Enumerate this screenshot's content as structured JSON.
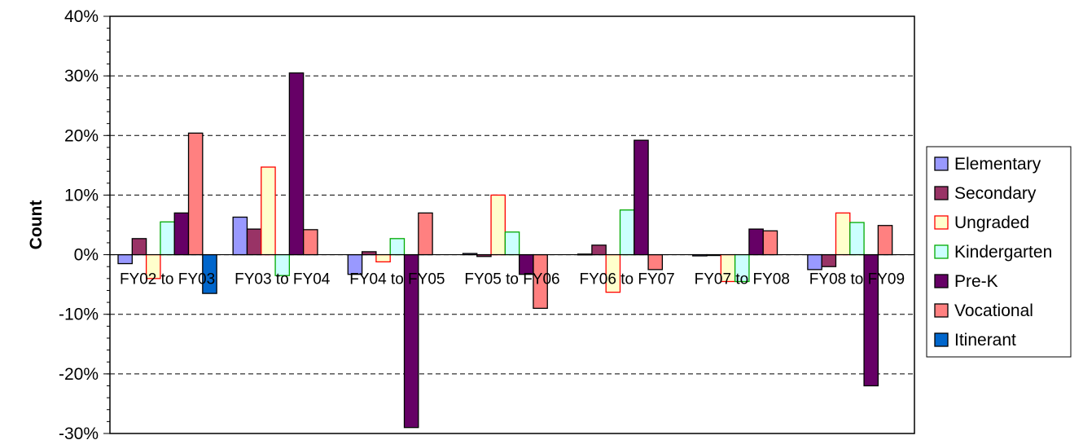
{
  "chart_data": {
    "type": "bar",
    "ylabel": "Count",
    "xlabel": "",
    "title": "",
    "ylim": [
      -0.3,
      0.4
    ],
    "y_ticks": [
      "40%",
      "30%",
      "20%",
      "10%",
      "0%",
      "-10%",
      "-20%",
      "-30%"
    ],
    "y_tick_values": [
      0.4,
      0.3,
      0.2,
      0.1,
      0.0,
      -0.1,
      -0.2,
      -0.3
    ],
    "grid": "horizontal dashed",
    "legend_position": "right",
    "categories": [
      "FY02 to FY03",
      "FY03 to FY04",
      "FY04 to FY05",
      "FY05 to FY06",
      "FY06 to FY07",
      "FY07 to FY08",
      "FY08 to FY09"
    ],
    "series": [
      {
        "name": "Elementary",
        "fill": "#9999ff",
        "stroke": "#000000",
        "values": [
          -0.015,
          0.063,
          -0.033,
          0.002,
          0.001,
          -0.002,
          -0.025
        ]
      },
      {
        "name": "Secondary",
        "fill": "#993366",
        "stroke": "#000000",
        "values": [
          0.027,
          0.043,
          0.005,
          -0.003,
          0.016,
          0.0,
          -0.02
        ]
      },
      {
        "name": "Ungraded",
        "fill": "#ffffcc",
        "stroke": "#ff0000",
        "values": [
          -0.04,
          0.147,
          -0.012,
          0.1,
          -0.063,
          -0.045,
          0.07
        ]
      },
      {
        "name": "Kindergarten",
        "fill": "#ccffff",
        "stroke": "#00aa00",
        "values": [
          0.055,
          -0.035,
          0.027,
          0.038,
          0.075,
          -0.045,
          0.054
        ]
      },
      {
        "name": "Pre-K",
        "fill": "#660066",
        "stroke": "#000000",
        "values": [
          0.07,
          0.305,
          -0.29,
          -0.033,
          0.192,
          0.043,
          -0.22
        ]
      },
      {
        "name": "Vocational",
        "fill": "#ff8080",
        "stroke": "#000000",
        "values": [
          0.204,
          0.042,
          0.07,
          -0.09,
          -0.025,
          0.04,
          0.049
        ]
      },
      {
        "name": "Itinerant",
        "fill": "#0066cc",
        "stroke": "#000000",
        "values": [
          -0.065,
          null,
          null,
          null,
          null,
          null,
          null
        ]
      }
    ]
  }
}
